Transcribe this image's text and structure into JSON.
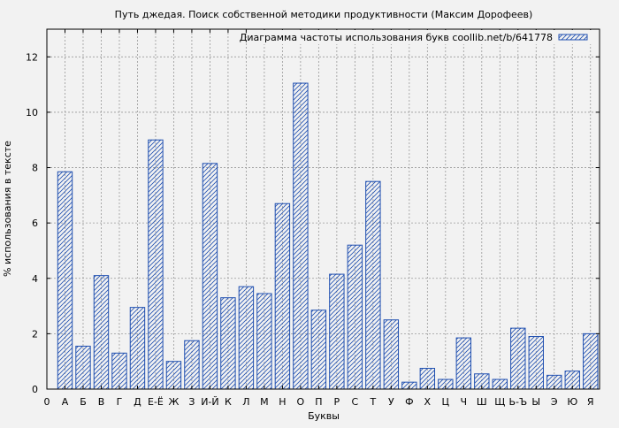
{
  "chart_data": {
    "type": "bar",
    "title": "Путь джедая. Поиск собственной методики продуктивности (Максим Дорофеев)",
    "xlabel": "Буквы",
    "ylabel": "% использования в тексте",
    "ylim": [
      0,
      13
    ],
    "yticks": [
      0,
      2,
      4,
      6,
      8,
      10,
      12
    ],
    "x_origin_label": "0",
    "grid": true,
    "legend_position": "top-right",
    "pattern": "diagonal-hatch",
    "colors": {
      "bar_stroke": "#1f4fb0",
      "background": "#f2f2f2",
      "grid": "#999999"
    },
    "categories": [
      "А",
      "Б",
      "В",
      "Г",
      "Д",
      "Е-Ё",
      "Ж",
      "З",
      "И-Й",
      "К",
      "Л",
      "М",
      "Н",
      "О",
      "П",
      "Р",
      "С",
      "Т",
      "У",
      "Ф",
      "Х",
      "Ц",
      "Ч",
      "Ш",
      "Щ",
      "Ь-Ъ",
      "Ы",
      "Э",
      "Ю",
      "Я"
    ],
    "series": [
      {
        "name": "Диаграмма частоты использования букв coollib.net/b/641778",
        "values": [
          7.85,
          1.55,
          4.1,
          1.3,
          2.95,
          9.0,
          1.0,
          1.75,
          8.15,
          3.3,
          3.7,
          3.45,
          6.7,
          11.05,
          2.85,
          4.15,
          5.2,
          7.5,
          2.5,
          0.25,
          0.75,
          0.35,
          1.85,
          0.55,
          0.35,
          2.2,
          1.9,
          0.5,
          0.65,
          2.0
        ]
      }
    ]
  }
}
